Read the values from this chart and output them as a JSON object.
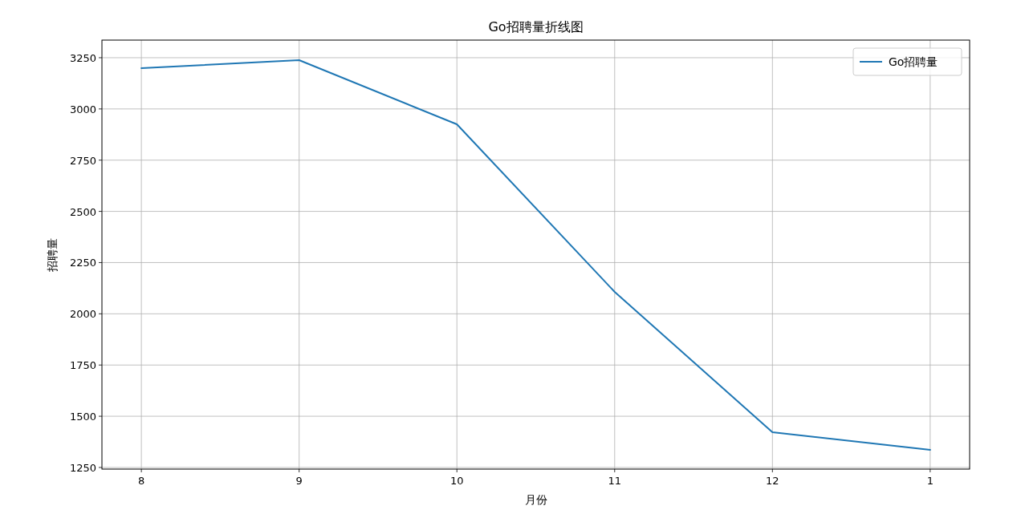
{
  "chart_data": {
    "type": "line",
    "title": "Go招聘量折线图",
    "xlabel": "月份",
    "ylabel": "招聘量",
    "categories": [
      "8",
      "9",
      "10",
      "11",
      "12",
      "1"
    ],
    "series": [
      {
        "name": "Go招聘量",
        "color": "#1f77b4",
        "values": [
          3199,
          3238,
          2925,
          2107,
          1422,
          1336
        ]
      }
    ],
    "ylim": [
      1242,
      3336
    ],
    "yticks": [
      1250,
      1500,
      1750,
      2000,
      2250,
      2500,
      2750,
      3000,
      3250
    ],
    "grid": true,
    "legend": "top right",
    "marker": "none",
    "line_style": "solid"
  }
}
